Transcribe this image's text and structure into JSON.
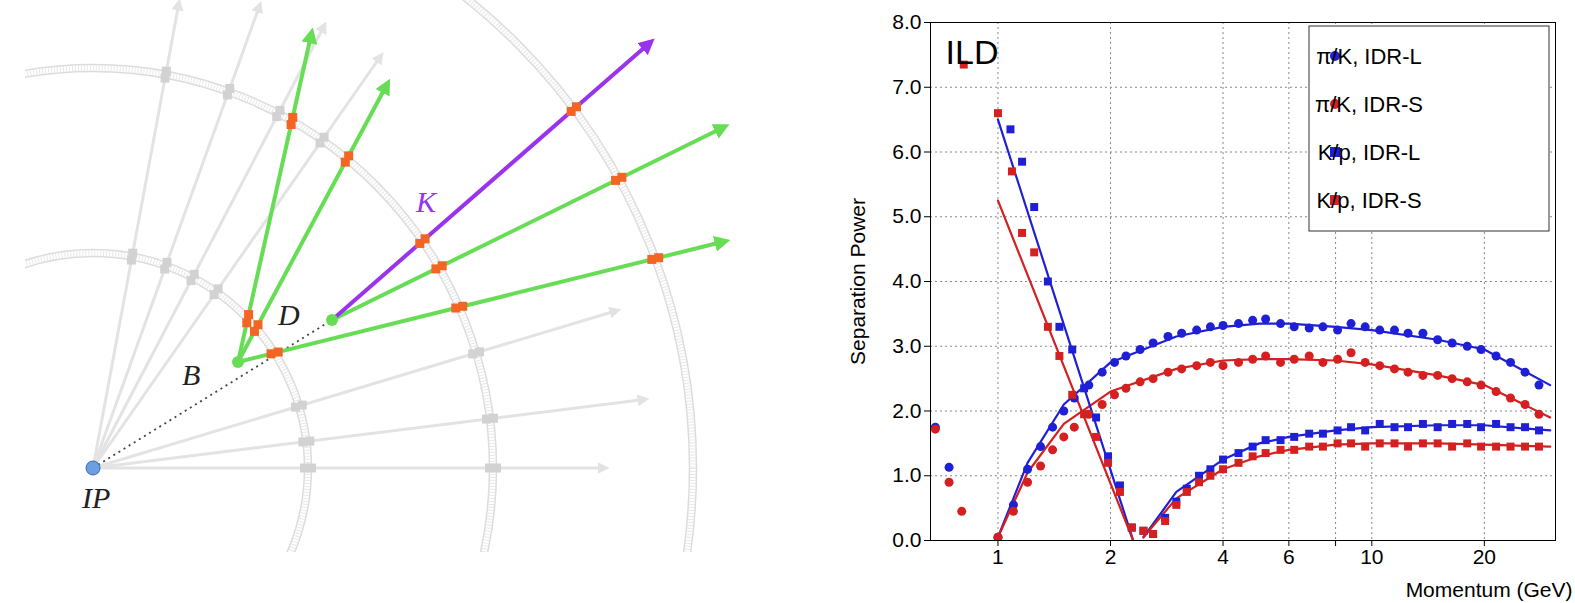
{
  "diagram": {
    "labels": {
      "ip": "IP",
      "b": "B",
      "d": "D",
      "k": "K"
    }
  },
  "chart_data": {
    "type": "scatter",
    "title": "ILD",
    "x_label": "Momentum (GeV)",
    "y_label": "Separation Power",
    "log": "x",
    "grid": true,
    "legend": "top-right",
    "xlim": [
      0.66,
      31
    ],
    "xticks": [
      1,
      2,
      4,
      6,
      8,
      10,
      20
    ],
    "ylim": [
      0,
      8
    ],
    "yticks": [
      {
        "value": 0,
        "label": "0.0"
      },
      {
        "value": 1,
        "label": "1.0"
      },
      {
        "value": 2,
        "label": "2.0"
      },
      {
        "value": 3,
        "label": "3.0"
      },
      {
        "value": 4,
        "label": "4.0"
      },
      {
        "value": 5,
        "label": "5.0"
      },
      {
        "value": 6,
        "label": "6.0"
      },
      {
        "value": 7,
        "label": "7.0"
      },
      {
        "value": 8,
        "label": "8.0"
      }
    ],
    "series": [
      {
        "name": "π/K, IDR-L",
        "color": "#1f1fd6",
        "marker": "circle",
        "x": [
          0.68,
          0.74,
          1.0,
          1.1,
          1.2,
          1.3,
          1.4,
          1.5,
          1.6,
          1.75,
          1.9,
          2.05,
          2.2,
          2.4,
          2.6,
          2.85,
          3.1,
          3.4,
          3.7,
          4.0,
          4.4,
          4.8,
          5.2,
          5.7,
          6.2,
          6.8,
          7.4,
          8.1,
          8.8,
          9.6,
          10.5,
          11.5,
          12.5,
          13.7,
          15,
          16.4,
          18,
          19.6,
          21.5,
          23.5,
          25.7,
          28
        ],
        "values": [
          1.75,
          1.13,
          0.05,
          0.55,
          1.1,
          1.45,
          1.75,
          2.0,
          2.2,
          2.4,
          2.6,
          2.75,
          2.85,
          2.95,
          3.05,
          3.15,
          3.2,
          3.25,
          3.3,
          3.32,
          3.35,
          3.4,
          3.42,
          3.35,
          3.3,
          3.28,
          3.3,
          3.25,
          3.35,
          3.3,
          3.25,
          3.25,
          3.2,
          3.2,
          3.1,
          3.05,
          3.0,
          2.95,
          2.85,
          2.75,
          2.6,
          2.4
        ],
        "fit": {
          "x": [
            1.0,
            1.2,
            1.5,
            2,
            3,
            4,
            5,
            6,
            8,
            10,
            15,
            20,
            30
          ],
          "values": [
            0.05,
            1.2,
            2.1,
            2.75,
            3.15,
            3.3,
            3.35,
            3.35,
            3.3,
            3.25,
            3.1,
            2.95,
            2.4
          ]
        }
      },
      {
        "name": "π/K, IDR-S",
        "color": "#d42020",
        "marker": "circle",
        "x": [
          0.68,
          0.74,
          0.8,
          1.0,
          1.1,
          1.2,
          1.3,
          1.4,
          1.5,
          1.6,
          1.75,
          1.9,
          2.05,
          2.2,
          2.4,
          2.6,
          2.85,
          3.1,
          3.4,
          3.7,
          4.0,
          4.4,
          4.8,
          5.2,
          5.7,
          6.2,
          6.8,
          7.4,
          8.1,
          8.8,
          9.6,
          10.5,
          11.5,
          12.5,
          13.7,
          15,
          16.4,
          18,
          19.6,
          21.5,
          23.5,
          25.7,
          28
        ],
        "values": [
          1.72,
          0.9,
          0.45,
          0.05,
          0.45,
          0.9,
          1.15,
          1.4,
          1.6,
          1.75,
          1.95,
          2.1,
          2.25,
          2.35,
          2.45,
          2.5,
          2.6,
          2.65,
          2.7,
          2.75,
          2.7,
          2.75,
          2.8,
          2.85,
          2.75,
          2.8,
          2.85,
          2.75,
          2.8,
          2.9,
          2.75,
          2.7,
          2.65,
          2.6,
          2.55,
          2.55,
          2.5,
          2.45,
          2.4,
          2.3,
          2.2,
          2.1,
          1.95
        ],
        "fit": {
          "x": [
            1.0,
            1.2,
            1.5,
            2,
            3,
            4,
            5,
            6,
            8,
            10,
            15,
            20,
            30
          ],
          "values": [
            0.05,
            1.05,
            1.8,
            2.3,
            2.65,
            2.78,
            2.8,
            2.8,
            2.78,
            2.72,
            2.55,
            2.4,
            1.9
          ]
        }
      },
      {
        "name": "K/p, IDR-L",
        "color": "#1f1fd6",
        "marker": "square",
        "x": [
          1.08,
          1.16,
          1.25,
          1.36,
          1.46,
          1.58,
          1.7,
          1.83,
          1.97,
          2.12,
          2.28,
          2.45,
          2.6,
          2.8,
          3.0,
          3.2,
          3.45,
          3.7,
          4.0,
          4.4,
          4.8,
          5.2,
          5.7,
          6.2,
          6.8,
          7.4,
          8.1,
          8.8,
          9.6,
          10.5,
          11.5,
          12.5,
          13.7,
          15,
          16.4,
          18,
          19.6,
          21.5,
          23.5,
          25.7,
          28
        ],
        "values": [
          6.35,
          5.85,
          5.15,
          4.0,
          3.3,
          2.95,
          2.35,
          1.9,
          1.3,
          0.85,
          0.2,
          0.15,
          0.1,
          0.35,
          0.6,
          0.8,
          1.0,
          1.1,
          1.25,
          1.35,
          1.45,
          1.55,
          1.55,
          1.6,
          1.65,
          1.65,
          1.7,
          1.75,
          1.7,
          1.8,
          1.75,
          1.75,
          1.8,
          1.75,
          1.8,
          1.8,
          1.75,
          1.8,
          1.75,
          1.75,
          1.7
        ],
        "fit": {
          "x": [
            1.0,
            2.3,
            2.38,
            2.45,
            3,
            4,
            5,
            6,
            8,
            10,
            15,
            20,
            30
          ],
          "values": [
            6.5,
            0,
            null,
            0.05,
            0.75,
            1.25,
            1.5,
            1.6,
            1.7,
            1.75,
            1.78,
            1.78,
            1.7
          ]
        }
      },
      {
        "name": "K/p, IDR-S",
        "color": "#d42020",
        "marker": "square",
        "x": [
          0.81,
          1.0,
          1.09,
          1.16,
          1.25,
          1.36,
          1.46,
          1.58,
          1.7,
          1.83,
          1.97,
          2.12,
          2.28,
          2.45,
          2.6,
          2.8,
          3.0,
          3.2,
          3.45,
          3.7,
          4.0,
          4.4,
          4.8,
          5.2,
          5.7,
          6.2,
          6.8,
          7.4,
          8.1,
          8.8,
          9.6,
          10.5,
          11.5,
          12.5,
          13.7,
          15,
          16.4,
          18,
          19.6,
          21.5,
          23.5,
          25.7,
          28
        ],
        "values": [
          7.35,
          6.6,
          5.7,
          4.75,
          4.45,
          3.3,
          2.85,
          2.25,
          1.95,
          1.6,
          1.2,
          0.75,
          0.2,
          0.15,
          0.1,
          0.3,
          0.55,
          0.75,
          0.9,
          1.0,
          1.1,
          1.2,
          1.3,
          1.35,
          1.4,
          1.4,
          1.45,
          1.45,
          1.5,
          1.5,
          1.45,
          1.5,
          1.5,
          1.45,
          1.5,
          1.5,
          1.45,
          1.5,
          1.45,
          1.45,
          1.45,
          1.45,
          1.45
        ],
        "fit": {
          "x": [
            1.0,
            2.3,
            2.38,
            2.45,
            3,
            4,
            5,
            6,
            8,
            10,
            15,
            20,
            30
          ],
          "values": [
            5.25,
            0,
            null,
            0.05,
            0.65,
            1.1,
            1.3,
            1.4,
            1.48,
            1.5,
            1.5,
            1.48,
            1.45
          ]
        }
      }
    ]
  }
}
